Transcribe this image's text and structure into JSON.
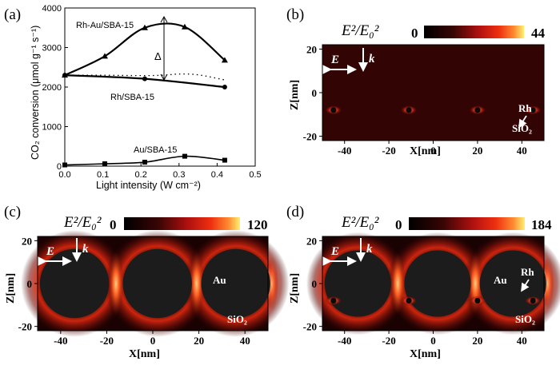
{
  "chart_data": [
    {
      "panel": "(a)",
      "type": "line",
      "xlabel": "Light intensity (W cm⁻²)",
      "ylabel": "CO₂ conversion (μmol g⁻¹ s⁻¹)",
      "xlim": [
        0.0,
        0.5
      ],
      "ylim": [
        0,
        4000
      ],
      "xticks": [
        "0.0",
        "0.1",
        "0.2",
        "0.3",
        "0.4",
        "0.5"
      ],
      "yticks": [
        "0",
        "1000",
        "2000",
        "3000",
        "4000"
      ],
      "series": [
        {
          "name": "Rh-Au/SBA-15",
          "marker": "triangle",
          "x": [
            0.0,
            0.105,
            0.21,
            0.315,
            0.42
          ],
          "y": [
            2300,
            2780,
            3500,
            3520,
            2680
          ]
        },
        {
          "name": "Rh/SBA-15",
          "marker": "circle",
          "x": [
            0.0,
            0.21,
            0.42
          ],
          "y": [
            2300,
            2210,
            2000
          ]
        },
        {
          "name": "Au/SBA-15",
          "marker": "square",
          "x": [
            0.0,
            0.105,
            0.21,
            0.315,
            0.42
          ],
          "y": [
            30,
            60,
            100,
            250,
            150
          ]
        }
      ],
      "dotted_line": {
        "x": [
          0.0,
          0.1,
          0.2,
          0.26,
          0.3,
          0.35,
          0.42
        ],
        "y": [
          2300,
          2300,
          2290,
          2300,
          2330,
          2310,
          2180
        ]
      },
      "annotations": [
        "Δ"
      ]
    },
    {
      "panel": "(b)",
      "type": "heatmap",
      "colorbar": {
        "title": "E²/E₀²",
        "min": "0",
        "max": "44"
      },
      "xlabel": "X[nm]",
      "ylabel": "Z[nm]",
      "xticks": [
        "-40",
        "-20",
        "0",
        "20",
        "40"
      ],
      "yticks": [
        "20",
        "0",
        "-20"
      ],
      "xlim": [
        -50,
        50
      ],
      "ylim": [
        -22,
        22
      ],
      "labels": [
        "E",
        "k",
        "Rh",
        "SiO₂"
      ],
      "rh_particles_x": [
        -45,
        -11,
        20,
        45
      ],
      "rh_particle_z": -8
    },
    {
      "panel": "(c)",
      "type": "heatmap",
      "colorbar": {
        "title": "E²/E₀²",
        "min": "0",
        "max": "120"
      },
      "xlabel": "X[nm]",
      "ylabel": "Z[nm]",
      "xticks": [
        "-40",
        "-20",
        "0",
        "20",
        "40"
      ],
      "yticks": [
        "20",
        "0",
        "-20"
      ],
      "xlim": [
        -50,
        50
      ],
      "ylim": [
        -22,
        22
      ],
      "labels": [
        "E",
        "k",
        "Au",
        "SiO₂"
      ],
      "au_particles_x": [
        -34,
        2,
        36
      ],
      "au_radius_nm": 15
    },
    {
      "panel": "(d)",
      "type": "heatmap",
      "colorbar": {
        "title": "E²/E₀²",
        "min": "0",
        "max": "184"
      },
      "xlabel": "X[nm]",
      "ylabel": "Z[nm]",
      "xticks": [
        "-40",
        "-20",
        "0",
        "20",
        "40"
      ],
      "yticks": [
        "20",
        "0",
        "-20"
      ],
      "xlim": [
        -50,
        50
      ],
      "ylim": [
        -22,
        22
      ],
      "labels": [
        "E",
        "k",
        "Au",
        "Rh",
        "SiO₂"
      ],
      "au_particles_x": [
        -34,
        2,
        36
      ],
      "au_radius_nm": 15,
      "rh_particles_x": [
        -45,
        -11,
        20,
        45
      ],
      "rh_particle_z": -8
    }
  ]
}
